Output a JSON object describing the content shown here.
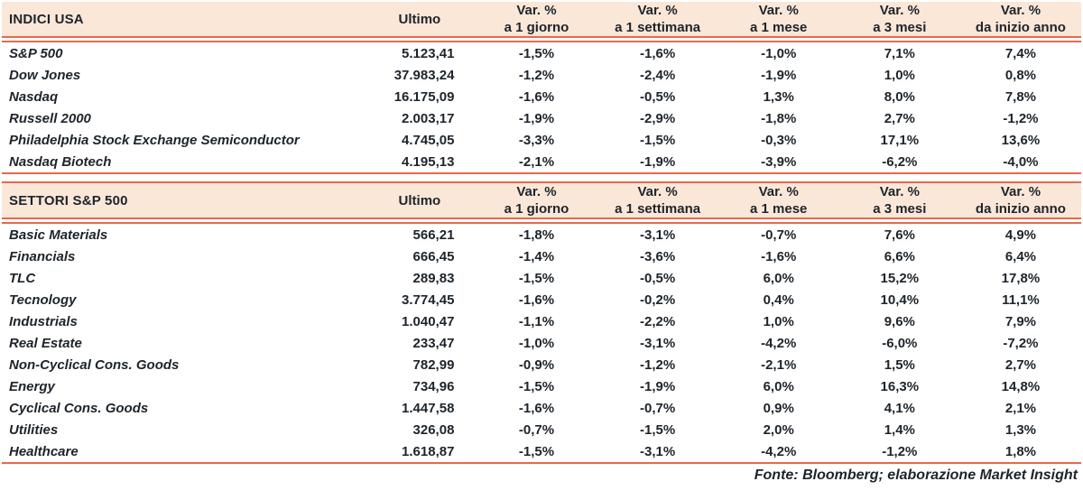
{
  "colors": {
    "header_bg": "#fbe7d8",
    "rule_line": "#e8684c",
    "text": "#1d242b"
  },
  "footer": {
    "source_note": "Fonte: Bloomberg; elaborazione Market Insight"
  },
  "tables": [
    {
      "title": "INDICI USA",
      "value_header": "Ultimo",
      "pct_headers": [
        {
          "line1": "Var. %",
          "line2": "a 1 giorno"
        },
        {
          "line1": "Var. %",
          "line2": "a 1 settimana"
        },
        {
          "line1": "Var. %",
          "line2": "a 1 mese"
        },
        {
          "line1": "Var. %",
          "line2": "a 3 mesi"
        },
        {
          "line1": "Var. %",
          "line2": "da inizio anno"
        }
      ],
      "rows": [
        {
          "label": "S&P 500",
          "ultimo": "5.123,41",
          "pcts": [
            "-1,5%",
            "-1,6%",
            "-1,0%",
            "7,1%",
            "7,4%"
          ]
        },
        {
          "label": "Dow Jones",
          "ultimo": "37.983,24",
          "pcts": [
            "-1,2%",
            "-2,4%",
            "-1,9%",
            "1,0%",
            "0,8%"
          ]
        },
        {
          "label": "Nasdaq",
          "ultimo": "16.175,09",
          "pcts": [
            "-1,6%",
            "-0,5%",
            "1,3%",
            "8,0%",
            "7,8%"
          ]
        },
        {
          "label": "Russell 2000",
          "ultimo": "2.003,17",
          "pcts": [
            "-1,9%",
            "-2,9%",
            "-1,8%",
            "2,7%",
            "-1,2%"
          ]
        },
        {
          "label": "Philadelphia Stock Exchange Semiconductor",
          "ultimo": "4.745,05",
          "pcts": [
            "-3,3%",
            "-1,5%",
            "-0,3%",
            "17,1%",
            "13,6%"
          ]
        },
        {
          "label": "Nasdaq Biotech",
          "ultimo": "4.195,13",
          "pcts": [
            "-2,1%",
            "-1,9%",
            "-3,9%",
            "-6,2%",
            "-4,0%"
          ]
        }
      ]
    },
    {
      "title": "SETTORI S&P 500",
      "value_header": "Ultimo",
      "pct_headers": [
        {
          "line1": "Var. %",
          "line2": "a 1 giorno"
        },
        {
          "line1": "Var. %",
          "line2": "a 1 settimana"
        },
        {
          "line1": "Var. %",
          "line2": "a 1 mese"
        },
        {
          "line1": "Var. %",
          "line2": "a 3 mesi"
        },
        {
          "line1": "Var. %",
          "line2": "da inizio anno"
        }
      ],
      "rows": [
        {
          "label": "Basic Materials",
          "ultimo": "566,21",
          "pcts": [
            "-1,8%",
            "-3,1%",
            "-0,7%",
            "7,6%",
            "4,9%"
          ]
        },
        {
          "label": "Financials",
          "ultimo": "666,45",
          "pcts": [
            "-1,4%",
            "-3,6%",
            "-1,6%",
            "6,6%",
            "6,4%"
          ]
        },
        {
          "label": "TLC",
          "ultimo": "289,83",
          "pcts": [
            "-1,5%",
            "-0,5%",
            "6,0%",
            "15,2%",
            "17,8%"
          ]
        },
        {
          "label": "Tecnology",
          "ultimo": "3.774,45",
          "pcts": [
            "-1,6%",
            "-0,2%",
            "0,4%",
            "10,4%",
            "11,1%"
          ]
        },
        {
          "label": "Industrials",
          "ultimo": "1.040,47",
          "pcts": [
            "-1,1%",
            "-2,2%",
            "1,0%",
            "9,6%",
            "7,9%"
          ]
        },
        {
          "label": "Real Estate",
          "ultimo": "233,47",
          "pcts": [
            "-1,0%",
            "-3,1%",
            "-4,2%",
            "-6,0%",
            "-7,2%"
          ]
        },
        {
          "label": "Non-Cyclical Cons. Goods",
          "ultimo": "782,99",
          "pcts": [
            "-0,9%",
            "-1,2%",
            "-2,1%",
            "1,5%",
            "2,7%"
          ]
        },
        {
          "label": "Energy",
          "ultimo": "734,96",
          "pcts": [
            "-1,5%",
            "-1,9%",
            "6,0%",
            "16,3%",
            "14,8%"
          ]
        },
        {
          "label": "Cyclical Cons. Goods",
          "ultimo": "1.447,58",
          "pcts": [
            "-1,6%",
            "-0,7%",
            "0,9%",
            "4,1%",
            "2,1%"
          ]
        },
        {
          "label": "Utilities",
          "ultimo": "326,08",
          "pcts": [
            "-0,7%",
            "-1,5%",
            "2,0%",
            "1,4%",
            "1,3%"
          ]
        },
        {
          "label": "Healthcare",
          "ultimo": "1.618,87",
          "pcts": [
            "-1,5%",
            "-3,1%",
            "-4,2%",
            "-1,2%",
            "1,8%"
          ]
        }
      ]
    }
  ]
}
